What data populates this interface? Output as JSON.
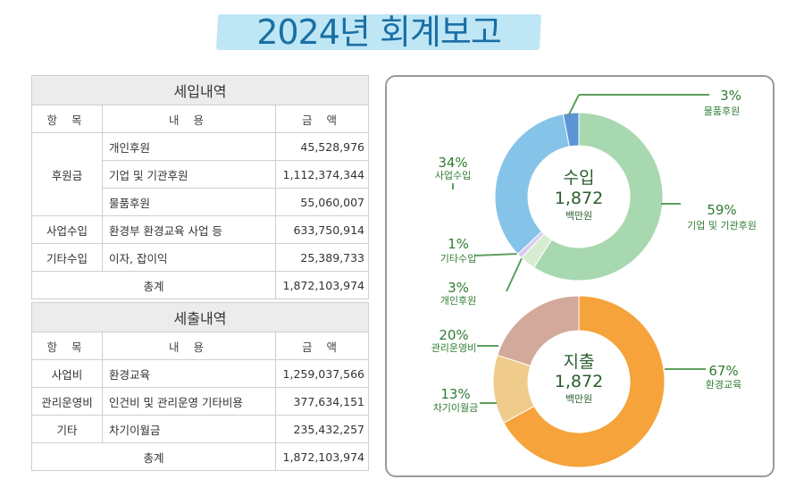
{
  "title": "2024년 회계보고",
  "income_table": {
    "title": "세입내역",
    "headers": [
      "항 목",
      "내 용",
      "금 액"
    ],
    "groups": [
      {
        "category": "후원금",
        "rows": [
          {
            "content": "개인후원",
            "amount": "45,528,976"
          },
          {
            "content": "기업 및 기관후원",
            "amount": "1,112,374,344"
          },
          {
            "content": "물품후원",
            "amount": "55,060,007"
          }
        ]
      },
      {
        "category": "사업수입",
        "rows": [
          {
            "content": "환경부 환경교육 사업 등",
            "amount": "633,750,914"
          }
        ]
      },
      {
        "category": "기타수입",
        "rows": [
          {
            "content": "이자, 잡이익",
            "amount": "25,389,733"
          }
        ]
      }
    ],
    "total_label": "총계",
    "total_amount": "1,872,103,974"
  },
  "expense_table": {
    "title": "세출내역",
    "headers": [
      "항 목",
      "내 용",
      "금 액"
    ],
    "rows": [
      {
        "category": "사업비",
        "content": "환경교육",
        "amount": "1,259,037,566"
      },
      {
        "category": "관리운영비",
        "content": "인건비 및 관리운영 기타비용",
        "amount": "377,634,151"
      },
      {
        "category": "기타",
        "content": "차기이월금",
        "amount": "235,432,257"
      }
    ],
    "total_label": "총계",
    "total_amount": "1,872,103,974"
  },
  "chart_data": [
    {
      "type": "pie",
      "title": "수입",
      "center_value": "1,872",
      "center_unit": "백만원",
      "slices": [
        {
          "label": "기업 및 기관후원",
          "value": 59,
          "display": "59%",
          "color": "#a8d8b0"
        },
        {
          "label": "개인후원",
          "value": 3,
          "display": "3%",
          "color": "#d8ecd4"
        },
        {
          "label": "기타수입",
          "value": 1,
          "display": "1%",
          "color": "#d9c9ee"
        },
        {
          "label": "사업수입",
          "value": 34,
          "display": "34%",
          "color": "#86c3e8"
        },
        {
          "label": "물품후원",
          "value": 3,
          "display": "3%",
          "color": "#5b95d6"
        }
      ]
    },
    {
      "type": "pie",
      "title": "지출",
      "center_value": "1,872",
      "center_unit": "백만원",
      "slices": [
        {
          "label": "환경교육",
          "value": 67,
          "display": "67%",
          "color": "#f5a33a"
        },
        {
          "label": "차기이월금",
          "value": 13,
          "display": "13%",
          "color": "#f0cc8c"
        },
        {
          "label": "관리운영비",
          "value": 20,
          "display": "20%",
          "color": "#d2a99a"
        }
      ]
    }
  ],
  "colors": {
    "label_green": "#2f7d32",
    "leader_green": "#5e9e5e",
    "title_blue": "#1a6fa4",
    "title_band": "#bfe6f5"
  }
}
